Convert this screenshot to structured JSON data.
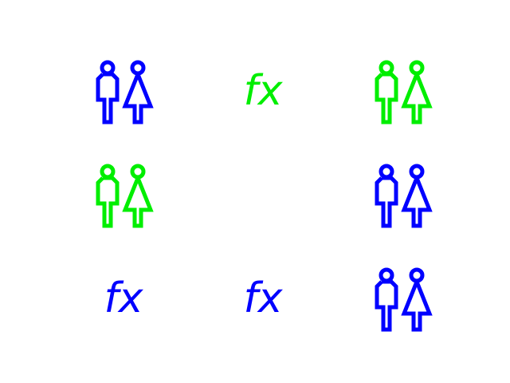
{
  "icons": [
    {
      "name": "restroom-icon",
      "color": "#0000ff"
    },
    {
      "name": "function-icon",
      "color": "#00ee00"
    },
    {
      "name": "restroom-icon",
      "color": "#00ee00"
    },
    {
      "name": "restroom-icon",
      "color": "#00ee00"
    },
    {
      "name": "empty",
      "color": ""
    },
    {
      "name": "restroom-icon",
      "color": "#0000ff"
    },
    {
      "name": "function-icon",
      "color": "#0000ff"
    },
    {
      "name": "function-icon",
      "color": "#0000ff"
    },
    {
      "name": "restroom-icon",
      "color": "#0000ff"
    }
  ]
}
